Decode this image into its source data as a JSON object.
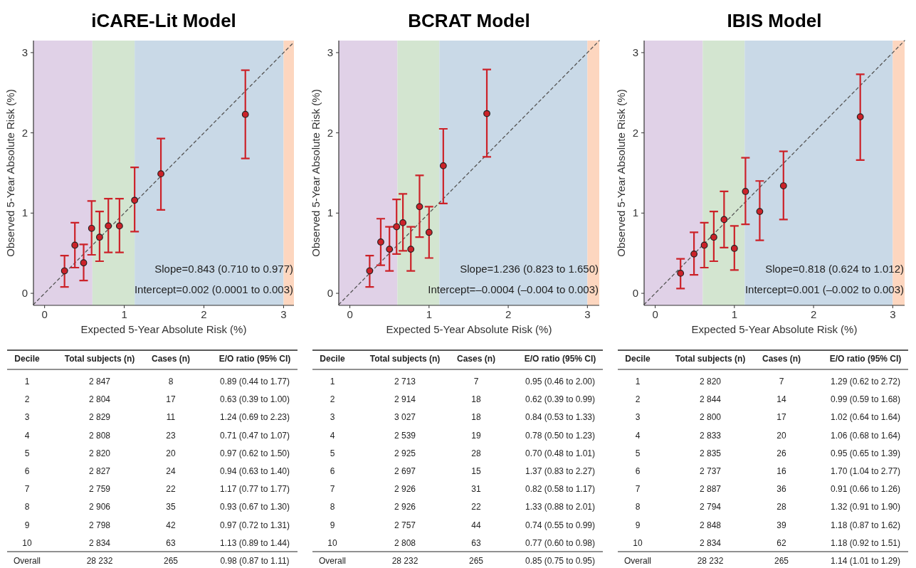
{
  "chart_data": [
    {
      "type": "scatter",
      "title": "iCARE-Lit Model",
      "xlabel": "Expected 5-Year Absolute Risk (%)",
      "ylabel": "Observed 5-Year Absolute Risk (%)",
      "xlim": [
        -0.14,
        3.13
      ],
      "ylim": [
        -0.15,
        3.15
      ],
      "xticks": [
        0,
        1,
        2,
        3
      ],
      "yticks": [
        0,
        1,
        2,
        3
      ],
      "bands": [
        {
          "axis": "x",
          "from": -0.14,
          "to": 0.6,
          "color": "#e0d1e7"
        },
        {
          "axis": "x",
          "from": 0.6,
          "to": 1.13,
          "color": "#d3e5d0"
        },
        {
          "axis": "x",
          "from": 1.13,
          "to": 3,
          "color": "#c9d9e7"
        },
        {
          "axis": "x",
          "from": 3,
          "to": 3.13,
          "color": "#fdd6bf"
        }
      ],
      "series": [
        {
          "type": "line",
          "color": "#555555",
          "line_style": "dashed",
          "marker": "none",
          "x": [
            -0.14,
            3.13
          ],
          "values": [
            -0.14,
            3.13
          ]
        },
        {
          "type": "scatter",
          "color": "#cc2229",
          "marker": "circle",
          "x": [
            0.25,
            0.38,
            0.49,
            0.59,
            0.69,
            0.8,
            0.94,
            1.13,
            1.46,
            2.52
          ],
          "values": [
            0.28,
            0.6,
            0.38,
            0.81,
            0.7,
            0.84,
            0.84,
            1.16,
            1.49,
            2.23
          ],
          "errors": [
            [
              0.08,
              0.47
            ],
            [
              0.32,
              0.88
            ],
            [
              0.16,
              0.61
            ],
            [
              0.48,
              1.15
            ],
            [
              0.4,
              1.02
            ],
            [
              0.51,
              1.18
            ],
            [
              0.51,
              1.18
            ],
            [
              0.77,
              1.57
            ],
            [
              1.04,
              1.93
            ],
            [
              1.68,
              2.78
            ]
          ]
        }
      ],
      "annotations": [
        "Slope=0.843 (0.710 to 0.977)",
        "Intercept=0.002 (0.0001 to 0.003)",
        "Decile",
        "Total subjects (n)",
        "Cases (n)",
        "E/O ratio (95% CI)",
        "1",
        "2 847",
        "8",
        "0.89 (0.44 to 1.77)",
        "2",
        "2 804",
        "17",
        "0.63 (0.39 to 1.00)",
        "3",
        "2 829",
        "11",
        "1.24 (0.69 to 2.23)",
        "4",
        "2 808",
        "23",
        "0.71 (0.47 to 1.07)",
        "5",
        "2 820",
        "20",
        "0.97 (0.62 to 1.50)",
        "6",
        "2 827",
        "24",
        "0.94 (0.63 to 1.40)",
        "7",
        "2 759",
        "22",
        "1.17 (0.77 to 1.77)",
        "8",
        "2 906",
        "35",
        "0.93 (0.67 to 1.30)",
        "9",
        "2 798",
        "42",
        "0.97 (0.72 to 1.31)",
        "10",
        "2 834",
        "63",
        "1.13 (0.89 to 1.44)",
        "Overall",
        "28 232",
        "265",
        "0.98 (0.87 to 1.11)"
      ]
    },
    {
      "type": "scatter",
      "title": "BCRAT Model",
      "xlabel": "Expected 5-Year Absolute Risk (%)",
      "ylabel": "Observed 5-Year Absolute Risk (%)",
      "xlim": [
        -0.14,
        3.15
      ],
      "ylim": [
        -0.15,
        3.15
      ],
      "xticks": [
        0,
        1,
        2,
        3
      ],
      "yticks": [
        0,
        1,
        2,
        3
      ],
      "bands": [
        {
          "axis": "x",
          "from": -0.14,
          "to": 0.6,
          "color": "#e0d1e7"
        },
        {
          "axis": "x",
          "from": 0.6,
          "to": 1.13,
          "color": "#d3e5d0"
        },
        {
          "axis": "x",
          "from": 1.13,
          "to": 3,
          "color": "#c9d9e7"
        },
        {
          "axis": "x",
          "from": 3,
          "to": 3.15,
          "color": "#fdd6bf"
        }
      ],
      "series": [
        {
          "type": "line",
          "color": "#555555",
          "line_style": "dashed",
          "marker": "none",
          "x": [
            -0.14,
            3.15
          ],
          "values": [
            -0.14,
            3.15
          ]
        },
        {
          "type": "scatter",
          "color": "#cc2229",
          "marker": "circle",
          "x": [
            0.25,
            0.39,
            0.5,
            0.59,
            0.67,
            0.77,
            0.88,
            1.0,
            1.18,
            1.73
          ],
          "values": [
            0.28,
            0.64,
            0.55,
            0.83,
            0.88,
            0.55,
            1.08,
            0.76,
            1.59,
            2.24
          ],
          "errors": [
            [
              0.08,
              0.47
            ],
            [
              0.35,
              0.93
            ],
            [
              0.28,
              0.83
            ],
            [
              0.49,
              1.17
            ],
            [
              0.53,
              1.24
            ],
            [
              0.28,
              0.83
            ],
            [
              0.7,
              1.47
            ],
            [
              0.44,
              1.08
            ],
            [
              1.12,
              2.05
            ],
            [
              1.7,
              2.79
            ]
          ]
        }
      ],
      "annotations": [
        "Slope=1.236 (0.823 to 1.650)",
        "Intercept=–0.0004 (–0.004 to 0.003)",
        "Decile",
        "Total subjects (n)",
        "Cases (n)",
        "E/O ratio (95% CI)",
        "1",
        "2 713",
        "7",
        "0.95 (0.46 to 2.00)",
        "2",
        "2 914",
        "18",
        "0.62 (0.39 to 0.99)",
        "3",
        "3 027",
        "18",
        "0.84 (0.53 to 1.33)",
        "4",
        "2 539",
        "19",
        "0.78 (0.50 to 1.23)",
        "5",
        "2 925",
        "28",
        "0.70 (0.48 to 1.01)",
        "6",
        "2 697",
        "15",
        "1.37 (0.83 to 2.27)",
        "7",
        "2 926",
        "31",
        "0.82 (0.58 to 1.17)",
        "8",
        "2 926",
        "22",
        "1.33 (0.88 to 2.01)",
        "9",
        "2 757",
        "44",
        "0.74 (0.55 to 0.99)",
        "10",
        "2 808",
        "63",
        "0.77 (0.60 to 0.98)",
        "Overall",
        "28 232",
        "265",
        "0.85 (0.75 to 0.95)"
      ]
    },
    {
      "type": "scatter",
      "title": "IBIS Model",
      "xlabel": "Expected 5-Year Absolute Risk (%)",
      "ylabel": "Observed 5-Year Absolute Risk (%)",
      "xlim": [
        -0.14,
        3.15
      ],
      "ylim": [
        -0.15,
        3.15
      ],
      "xticks": [
        0,
        1,
        2,
        3
      ],
      "yticks": [
        0,
        1,
        2,
        3
      ],
      "bands": [
        {
          "axis": "x",
          "from": -0.14,
          "to": 0.6,
          "color": "#e0d1e7"
        },
        {
          "axis": "x",
          "from": 0.6,
          "to": 1.13,
          "color": "#d3e5d0"
        },
        {
          "axis": "x",
          "from": 1.13,
          "to": 3,
          "color": "#c9d9e7"
        },
        {
          "axis": "x",
          "from": 3,
          "to": 3.15,
          "color": "#fdd6bf"
        }
      ],
      "series": [
        {
          "type": "line",
          "color": "#555555",
          "line_style": "dashed",
          "marker": "none",
          "x": [
            -0.14,
            3.15
          ],
          "values": [
            -0.14,
            3.15
          ]
        },
        {
          "type": "scatter",
          "color": "#cc2229",
          "marker": "circle",
          "x": [
            0.32,
            0.49,
            0.62,
            0.74,
            0.87,
            1.0,
            1.14,
            1.32,
            1.62,
            2.59
          ],
          "values": [
            0.25,
            0.49,
            0.6,
            0.7,
            0.92,
            0.56,
            1.27,
            1.02,
            1.34,
            2.2
          ],
          "errors": [
            [
              0.06,
              0.43
            ],
            [
              0.23,
              0.76
            ],
            [
              0.32,
              0.88
            ],
            [
              0.4,
              1.02
            ],
            [
              0.57,
              1.27
            ],
            [
              0.29,
              0.84
            ],
            [
              0.86,
              1.69
            ],
            [
              0.66,
              1.4
            ],
            [
              0.92,
              1.77
            ],
            [
              1.66,
              2.73
            ]
          ]
        }
      ],
      "annotations": [
        "Slope=0.818 (0.624 to 1.012)",
        "Intercept=0.001 (–0.002 to 0.003)",
        "Decile",
        "Total subjects (n)",
        "Cases (n)",
        "E/O ratio (95% CI)",
        "1",
        "2 820",
        "7",
        "1.29 (0.62 to 2.72)",
        "2",
        "2 844",
        "14",
        "0.99 (0.59 to 1.68)",
        "3",
        "2 800",
        "17",
        "1.02 (0.64 to 1.64)",
        "4",
        "2 833",
        "20",
        "1.06 (0.68 to 1.64)",
        "5",
        "2 835",
        "26",
        "0.95 (0.65 to 1.39)",
        "6",
        "2 737",
        "16",
        "1.70 (1.04 to 2.77)",
        "7",
        "2 887",
        "36",
        "0.91 (0.66 to 1.26)",
        "8",
        "2 794",
        "28",
        "1.32 (0.91 to 1.90)",
        "9",
        "2 848",
        "39",
        "1.18 (0.87 to 1.62)",
        "10",
        "2 834",
        "62",
        "1.18 (0.92 to 1.51)",
        "Overall",
        "28 232",
        "265",
        "1.14 (1.01 to 1.29)"
      ]
    }
  ]
}
